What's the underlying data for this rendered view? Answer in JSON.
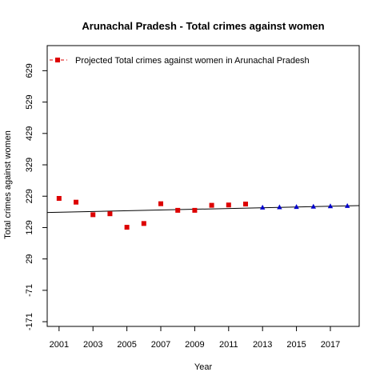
{
  "chart_data": {
    "type": "scatter",
    "title": "Arunachal Pradesh  -  Total crimes against women",
    "xlabel": "Year",
    "ylabel": "Total crimes against women",
    "xlim": [
      2000.3,
      2018.7
    ],
    "ylim": [
      -186,
      709
    ],
    "x_ticks": [
      2001,
      2003,
      2005,
      2007,
      2009,
      2011,
      2013,
      2015,
      2017
    ],
    "y_ticks": [
      -171,
      -71,
      29,
      129,
      229,
      329,
      429,
      529,
      629
    ],
    "legend": {
      "position": "top-left",
      "entries": [
        {
          "label": "Projected  Total crimes against women  in  Arunachal Pradesh",
          "color": "#dd0000"
        }
      ]
    },
    "series": [
      {
        "color": "#dd0000",
        "marker": "square",
        "x": [
          2001,
          2002,
          2003,
          2004,
          2005,
          2006,
          2007,
          2008,
          2009,
          2010,
          2011,
          2012
        ],
        "y": [
          222,
          210,
          170,
          173,
          130,
          142,
          205,
          184,
          184,
          200,
          201,
          204
        ]
      },
      {
        "color": "#0000cc",
        "marker": "triangle",
        "x": [
          2013,
          2014,
          2015,
          2016,
          2017,
          2018
        ],
        "y": [
          193,
          194,
          195,
          196,
          197,
          198
        ]
      }
    ],
    "trend_line": {
      "color": "#000000",
      "x": [
        2000.3,
        2018.7
      ],
      "y": [
        177,
        199
      ]
    }
  }
}
